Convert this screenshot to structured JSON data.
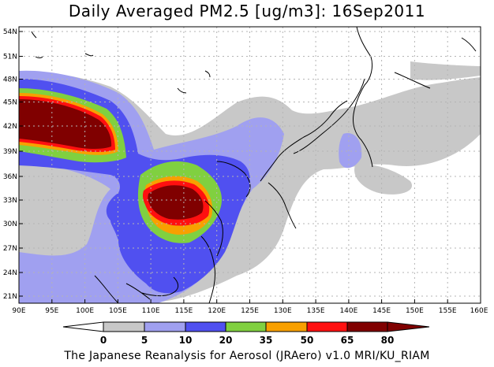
{
  "title": "Daily Averaged PM2.5 [ug/m3]: 16Sep2011",
  "footer": "The Japanese Reanalysis for Aerosol (JRAero) v1.0 MRI/KU_RIAM",
  "lon_labels": [
    "90E",
    "95E",
    "100E",
    "105E",
    "110E",
    "115E",
    "120E",
    "125E",
    "130E",
    "135E",
    "140E",
    "145E",
    "150E",
    "155E",
    "160E"
  ],
  "lat_labels": [
    "54N",
    "51N",
    "48N",
    "45N",
    "42N",
    "39N",
    "36N",
    "33N",
    "30N",
    "27N",
    "24N",
    "21N"
  ],
  "colorbar": {
    "labels": [
      "0",
      "5",
      "10",
      "20",
      "35",
      "50",
      "65",
      "80"
    ],
    "colors": [
      "#ffffff",
      "#c8c8c8",
      "#a0a0f0",
      "#5050f0",
      "#80d040",
      "#f8a000",
      "#ff1010",
      "#800000"
    ]
  }
}
